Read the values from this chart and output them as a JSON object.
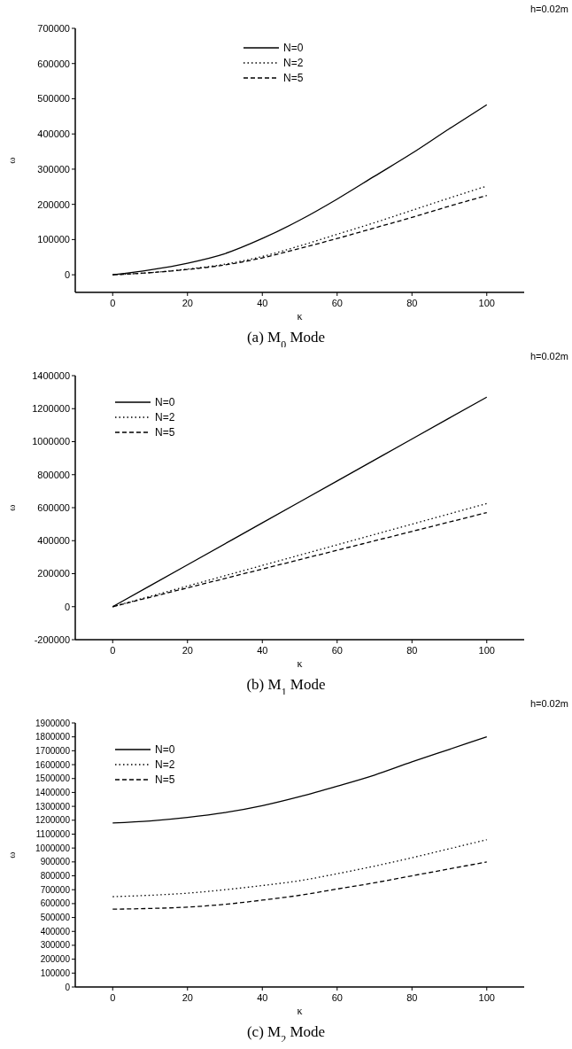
{
  "chart_data": [
    {
      "type": "line",
      "title": "(a) M$_{0}$ Mode",
      "xlabel": "κ",
      "ylabel": "ω",
      "annotations": [
        "h=0.02m"
      ],
      "legend": "top",
      "xlim": [
        -10,
        110
      ],
      "xticks": [
        0,
        20,
        40,
        60,
        80,
        100
      ],
      "ylim": [
        -50000,
        700000
      ],
      "yticks": [
        0,
        100000,
        200000,
        300000,
        400000,
        500000,
        600000,
        700000
      ],
      "x": [
        0,
        10,
        20,
        30,
        40,
        50,
        60,
        70,
        80,
        90,
        100
      ],
      "series": [
        {
          "name": "N=0",
          "color": "#000000",
          "line_style": "solid",
          "values": [
            0,
            14000,
            33000,
            60000,
            103000,
            155000,
            215000,
            280000,
            345000,
            415000,
            483000
          ]
        },
        {
          "name": "N=2",
          "color": "#000000",
          "line_style": "dotted",
          "values": [
            0,
            6000,
            16000,
            30000,
            52000,
            82000,
            115000,
            148000,
            183000,
            218000,
            252000
          ]
        },
        {
          "name": "N=5",
          "color": "#000000",
          "line_style": "dashed",
          "values": [
            0,
            6000,
            15000,
            28000,
            48000,
            75000,
            103000,
            133000,
            163000,
            195000,
            225000
          ]
        }
      ]
    },
    {
      "type": "line",
      "title": "(b) M$_{1}$ Mode",
      "xlabel": "κ",
      "ylabel": "ω",
      "annotations": [
        "h=0.02m"
      ],
      "legend": "top left",
      "xlim": [
        -10,
        110
      ],
      "xticks": [
        0,
        20,
        40,
        60,
        80,
        100
      ],
      "ylim": [
        -200000,
        1400000
      ],
      "yticks": [
        -200000,
        0,
        200000,
        400000,
        600000,
        800000,
        1000000,
        1200000,
        1400000
      ],
      "x": [
        0,
        20,
        40,
        60,
        80,
        100
      ],
      "series": [
        {
          "name": "N=0",
          "color": "#000000",
          "line_style": "solid",
          "values": [
            0,
            254000,
            508000,
            762000,
            1016000,
            1270000
          ]
        },
        {
          "name": "N=2",
          "color": "#000000",
          "line_style": "dotted",
          "values": [
            0,
            125000,
            250000,
            375000,
            500000,
            625000
          ]
        },
        {
          "name": "N=5",
          "color": "#000000",
          "line_style": "dashed",
          "values": [
            0,
            114000,
            228000,
            342000,
            456000,
            570000
          ]
        }
      ]
    },
    {
      "type": "line",
      "title": "(c) M$_{2}$ Mode",
      "xlabel": "κ",
      "ylabel": "ω",
      "annotations": [
        "h=0.02m"
      ],
      "legend": "top left",
      "xlim": [
        -10,
        110
      ],
      "xticks": [
        0,
        20,
        40,
        60,
        80,
        100
      ],
      "ylim": [
        0,
        1900000
      ],
      "yticks": [
        0,
        100000,
        200000,
        300000,
        400000,
        500000,
        600000,
        700000,
        800000,
        900000,
        1000000,
        1100000,
        1200000,
        1300000,
        1400000,
        1500000,
        1600000,
        1700000,
        1800000,
        1900000
      ],
      "x": [
        0,
        10,
        20,
        30,
        40,
        50,
        60,
        70,
        80,
        90,
        100
      ],
      "series": [
        {
          "name": "N=0",
          "color": "#000000",
          "line_style": "solid",
          "values": [
            1180000,
            1195000,
            1220000,
            1255000,
            1305000,
            1370000,
            1445000,
            1525000,
            1620000,
            1710000,
            1800000
          ]
        },
        {
          "name": "N=2",
          "color": "#000000",
          "line_style": "dotted",
          "values": [
            650000,
            660000,
            675000,
            700000,
            730000,
            765000,
            815000,
            870000,
            930000,
            995000,
            1060000
          ]
        },
        {
          "name": "N=5",
          "color": "#000000",
          "line_style": "dashed",
          "values": [
            560000,
            565000,
            575000,
            595000,
            625000,
            660000,
            705000,
            750000,
            800000,
            850000,
            900000
          ]
        }
      ]
    }
  ]
}
